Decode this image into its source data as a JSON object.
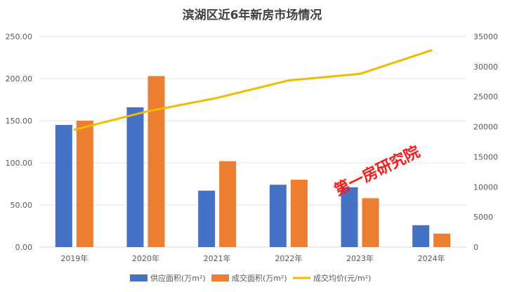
{
  "chart_data": {
    "type": "bar",
    "title": "滨湖区近6年新房市场情况",
    "categories": [
      "2019年",
      "2020年",
      "2021年",
      "2022年",
      "2023年",
      "2024年"
    ],
    "series": [
      {
        "name": "供应面积(万m²)",
        "type": "bar",
        "axis": "left",
        "color": "#4472c4",
        "values": [
          145,
          166,
          67,
          74,
          71,
          26
        ]
      },
      {
        "name": "成交面积(万m²)",
        "type": "bar",
        "axis": "left",
        "color": "#ed7d31",
        "values": [
          150,
          203,
          102,
          80,
          58,
          16
        ]
      },
      {
        "name": "成交均价(元/m²)",
        "type": "line",
        "axis": "right",
        "color": "#f2bb00",
        "values": [
          19500,
          22500,
          24800,
          27700,
          28800,
          32700
        ]
      }
    ],
    "y_left": {
      "min": 0,
      "max": 250,
      "step": 50,
      "ticks": [
        "0.00",
        "50.00",
        "100.00",
        "150.00",
        "200.00",
        "250.00"
      ]
    },
    "y_right": {
      "min": 0,
      "max": 35000,
      "step": 5000,
      "ticks": [
        "0",
        "5000",
        "10000",
        "15000",
        "20000",
        "25000",
        "30000",
        "35000"
      ]
    },
    "grid": true,
    "legend_position": "bottom"
  },
  "watermark": "第一房研究院"
}
